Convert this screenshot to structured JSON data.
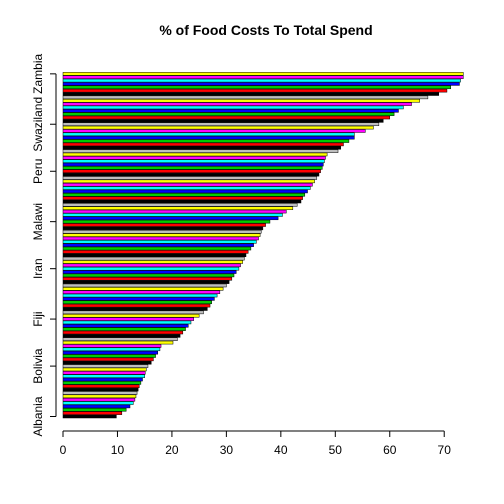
{
  "chart_data": {
    "type": "bar",
    "orientation": "horizontal",
    "title": "% of Food Costs To Total Spend",
    "xlabel": "",
    "ylabel": "",
    "xlim": [
      0,
      74
    ],
    "x_ticks": [
      0,
      10,
      20,
      30,
      40,
      50,
      60,
      70
    ],
    "y_tick_labels": [
      "Albania",
      "Bolivia",
      "Fiji",
      "Iran",
      "Malawi",
      "Peru",
      "Swaziland",
      "Zambia"
    ],
    "grid": false,
    "legend": "none",
    "colors": [
      "#000000",
      "#ff0000",
      "#00cd00",
      "#0000ff",
      "#00ffff",
      "#ff00ff",
      "#ffff00",
      "#bebebe"
    ],
    "values": [
      9.8,
      10.8,
      11.6,
      12.3,
      12.9,
      13.2,
      13.4,
      13.6,
      13.8,
      14.0,
      14.3,
      14.6,
      15.0,
      15.1,
      15.3,
      15.6,
      16.2,
      16.6,
      17.0,
      17.4,
      17.8,
      18.0,
      20.2,
      21.0,
      21.5,
      22.0,
      22.5,
      23.0,
      23.5,
      24.0,
      25.0,
      25.8,
      26.5,
      27.0,
      27.3,
      27.8,
      28.3,
      28.8,
      29.4,
      30.0,
      30.5,
      31.0,
      31.4,
      31.8,
      32.3,
      32.6,
      33.0,
      33.3,
      33.6,
      34.0,
      34.5,
      35.0,
      35.5,
      35.9,
      36.2,
      36.4,
      36.7,
      37.2,
      38.0,
      39.5,
      40.3,
      41.0,
      42.2,
      43.0,
      43.7,
      44.0,
      44.4,
      44.9,
      45.4,
      45.8,
      46.2,
      46.6,
      47.0,
      47.3,
      47.6,
      47.8,
      48.0,
      48.2,
      48.5,
      50.5,
      51.0,
      51.5,
      52.5,
      53.5,
      53.5,
      55.5,
      57.0,
      58.0,
      58.8,
      60.0,
      60.8,
      61.6,
      62.5,
      64.0,
      65.5,
      67.0,
      69.0,
      70.5,
      71.2,
      72.8,
      73.0,
      73.5,
      73.5
    ]
  }
}
